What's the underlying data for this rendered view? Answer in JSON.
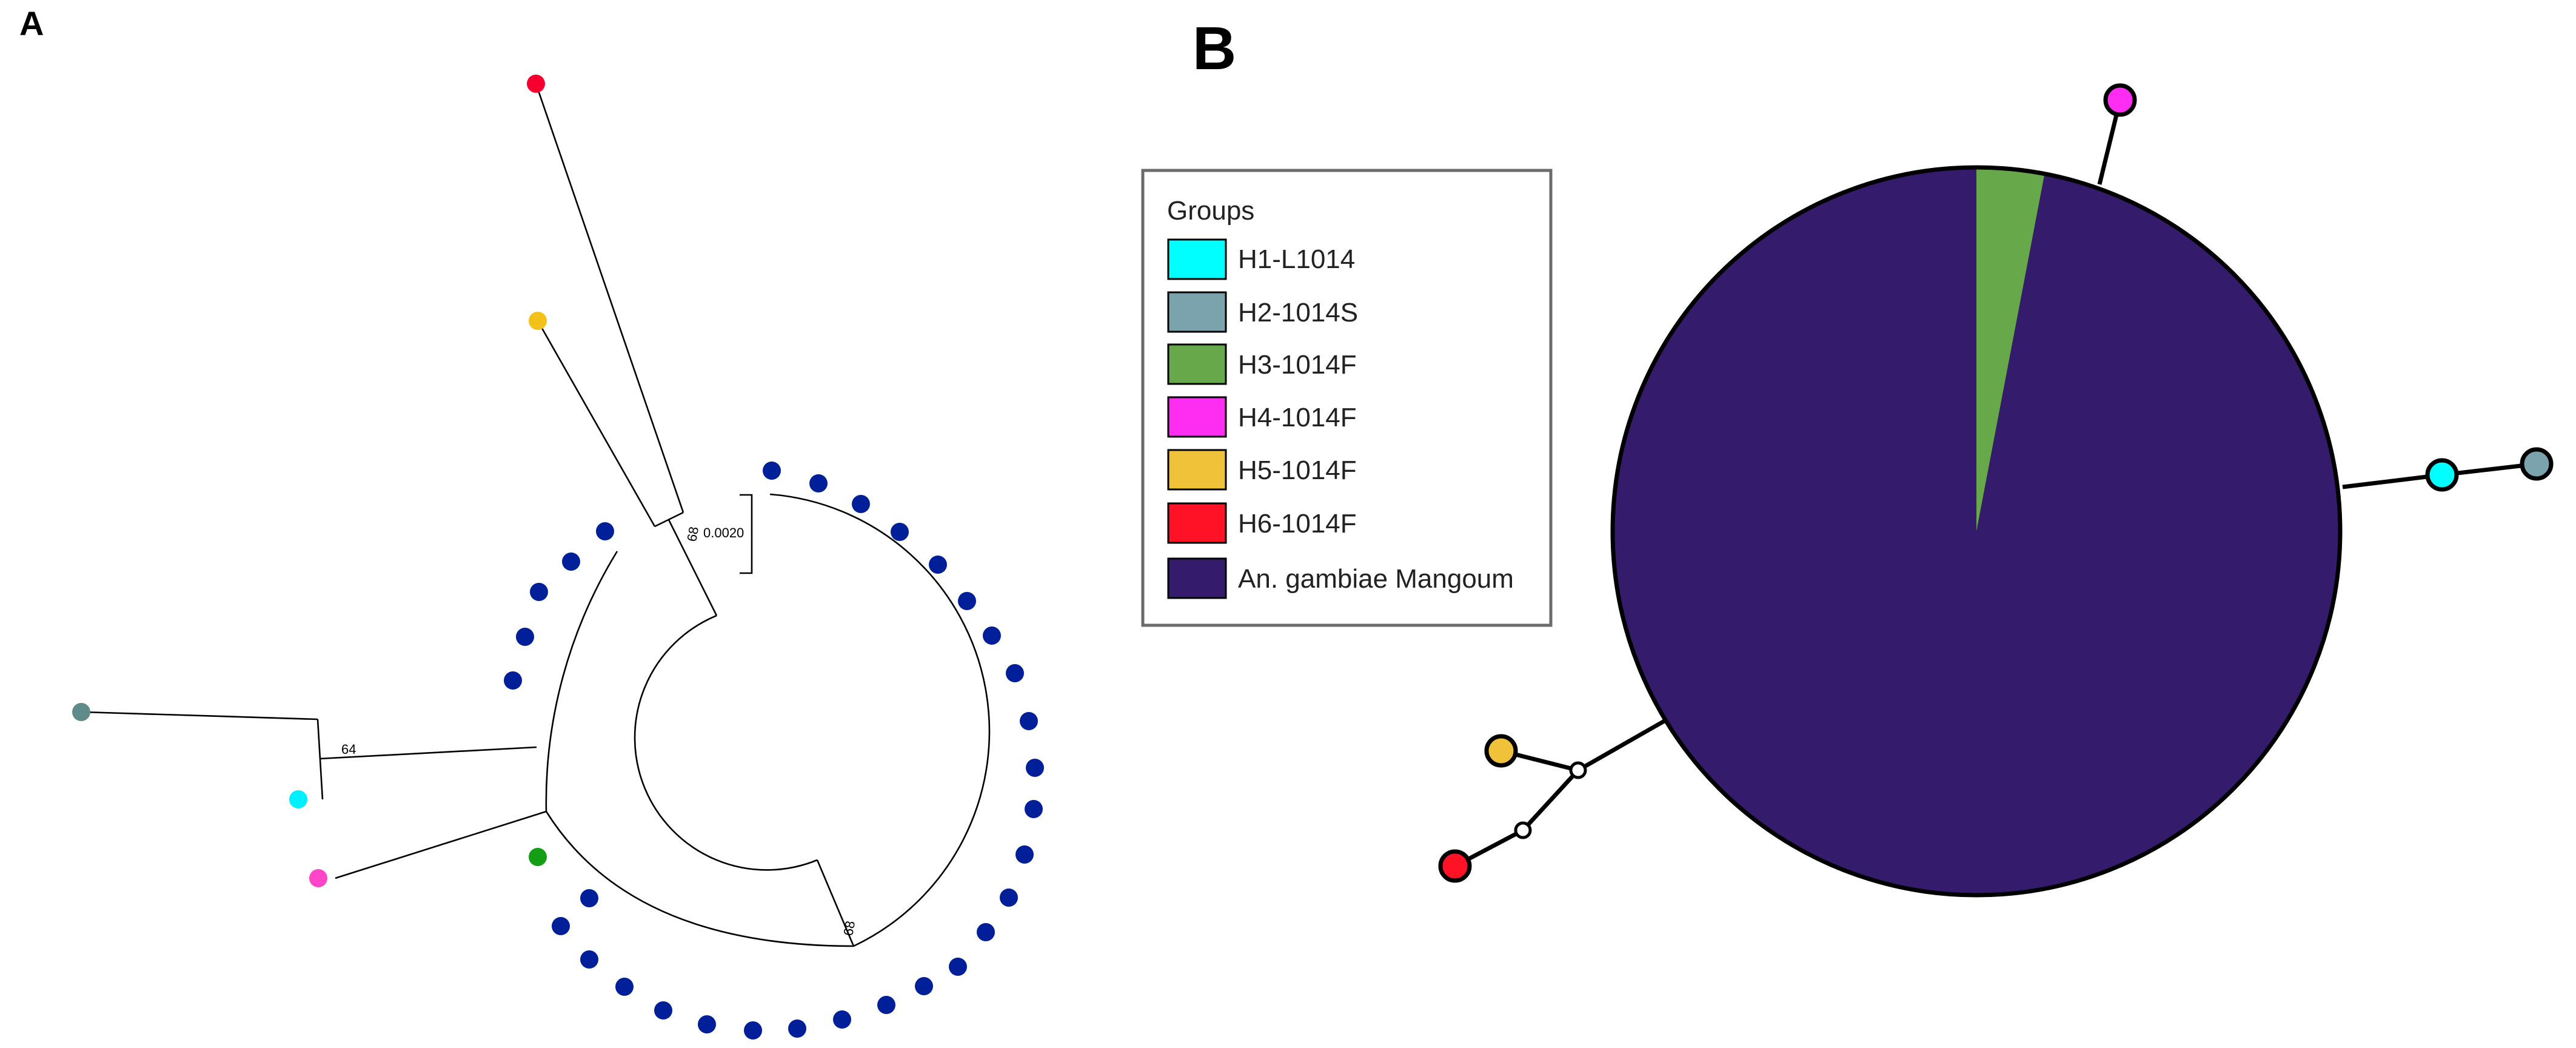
{
  "panel_a": {
    "letter": "A",
    "scale_bar_label": "0.0020",
    "bootstrap_labels": [
      "68",
      "64",
      "68"
    ],
    "tip_colors": {
      "h6_red": "#f5002e",
      "h5_yellow": "#f2c21b",
      "h2_gray": "#5f8b8b",
      "h1_cyan": "#00f0ff",
      "h4_magenta": "#ff45c8",
      "h3_green": "#139e13",
      "mangoum_blue": "#001f99"
    }
  },
  "panel_b": {
    "letter": "B",
    "legend": {
      "title": "Groups",
      "items": [
        {
          "label": "H1-L1014",
          "color": "#00ffff"
        },
        {
          "label": "H2-1014S",
          "color": "#7aa3ad"
        },
        {
          "label": "H3-1014F",
          "color": "#66a84a"
        },
        {
          "label": "H4-1014F",
          "color": "#ff2df2"
        },
        {
          "label": "H5-1014F",
          "color": "#f0c23a"
        },
        {
          "label": "H6-1014F",
          "color": "#ff1226"
        },
        {
          "label": "An. gambiae Mangoum",
          "color": "#341b6b"
        }
      ]
    },
    "main_node": {
      "composition": [
        {
          "group": "An. gambiae Mangoum",
          "fraction": 0.97
        },
        {
          "group": "H3-1014F",
          "fraction": 0.03
        }
      ]
    }
  }
}
